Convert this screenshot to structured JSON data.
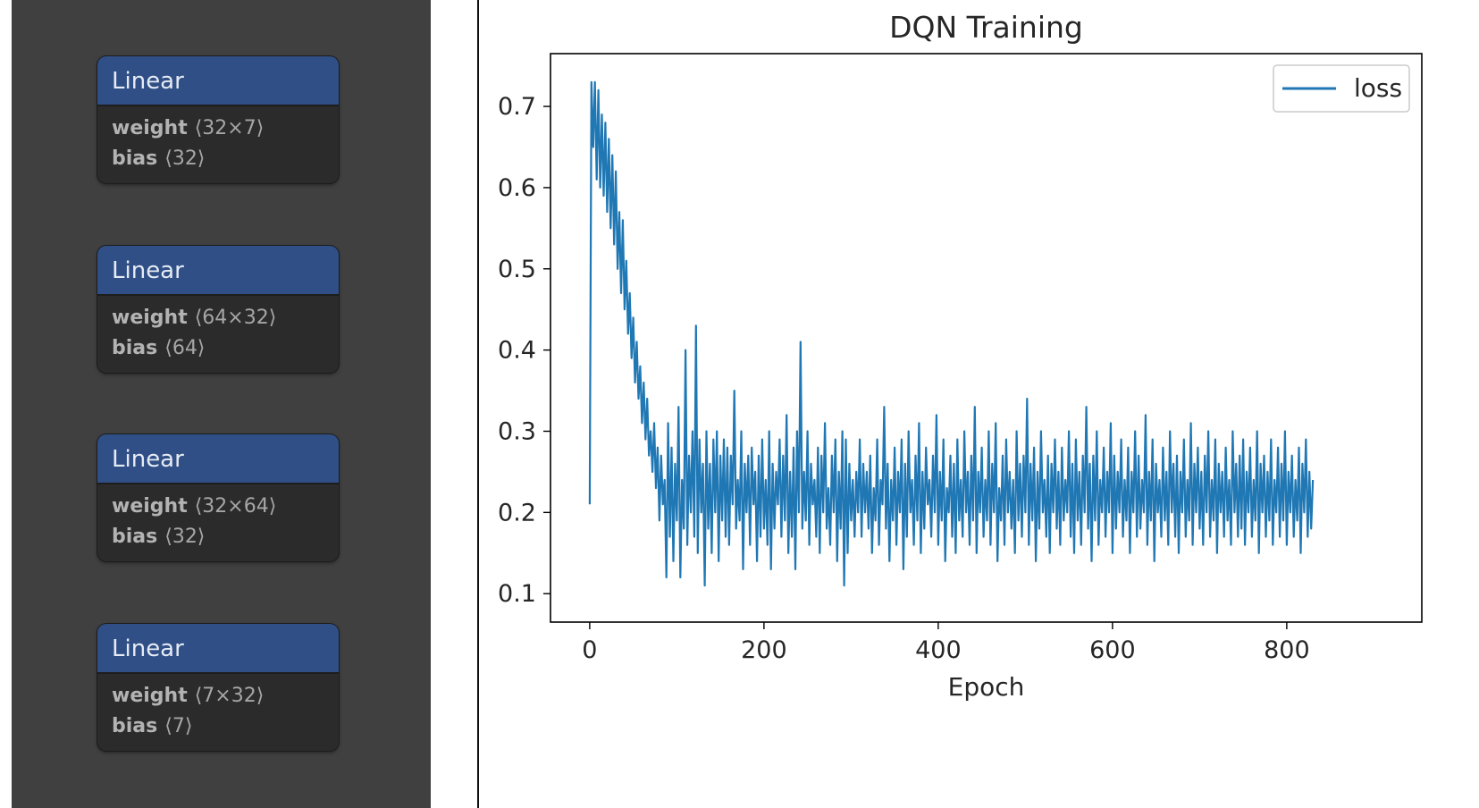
{
  "layers": [
    {
      "title": "Linear",
      "params": [
        {
          "name": "weight",
          "shape": "⟨32×7⟩"
        },
        {
          "name": "bias",
          "shape": "⟨32⟩"
        }
      ]
    },
    {
      "title": "Linear",
      "params": [
        {
          "name": "weight",
          "shape": "⟨64×32⟩"
        },
        {
          "name": "bias",
          "shape": "⟨64⟩"
        }
      ]
    },
    {
      "title": "Linear",
      "params": [
        {
          "name": "weight",
          "shape": "⟨32×64⟩"
        },
        {
          "name": "bias",
          "shape": "⟨32⟩"
        }
      ]
    },
    {
      "title": "Linear",
      "params": [
        {
          "name": "weight",
          "shape": "⟨7×32⟩"
        },
        {
          "name": "bias",
          "shape": "⟨7⟩"
        }
      ]
    }
  ],
  "colors": {
    "panel_bg": "#404040",
    "layer_header": "#2f4f86",
    "layer_body": "#2b2b2b",
    "series": "#1f77b4"
  },
  "chart_data": {
    "type": "line",
    "title": "DQN Training",
    "xlabel": "Epoch",
    "ylabel": "",
    "xlim": [
      -45,
      955
    ],
    "ylim": [
      0.065,
      0.765
    ],
    "xticks": [
      0,
      200,
      400,
      600,
      800
    ],
    "yticks": [
      0.1,
      0.2,
      0.3,
      0.4,
      0.5,
      0.6,
      0.7
    ],
    "grid": false,
    "legend": {
      "position": "top-right"
    },
    "series": [
      {
        "name": "loss",
        "color": "#1f77b4",
        "x_start": 0,
        "x_step": 2,
        "values": [
          0.21,
          0.73,
          0.65,
          0.73,
          0.61,
          0.72,
          0.6,
          0.69,
          0.59,
          0.68,
          0.57,
          0.66,
          0.55,
          0.64,
          0.53,
          0.62,
          0.5,
          0.57,
          0.47,
          0.56,
          0.45,
          0.51,
          0.42,
          0.47,
          0.39,
          0.44,
          0.36,
          0.41,
          0.34,
          0.38,
          0.31,
          0.36,
          0.29,
          0.34,
          0.27,
          0.3,
          0.25,
          0.31,
          0.23,
          0.28,
          0.19,
          0.27,
          0.21,
          0.24,
          0.12,
          0.31,
          0.17,
          0.28,
          0.14,
          0.26,
          0.19,
          0.33,
          0.12,
          0.24,
          0.18,
          0.4,
          0.16,
          0.27,
          0.2,
          0.3,
          0.17,
          0.43,
          0.15,
          0.29,
          0.2,
          0.26,
          0.11,
          0.3,
          0.18,
          0.26,
          0.15,
          0.29,
          0.2,
          0.3,
          0.14,
          0.27,
          0.19,
          0.29,
          0.17,
          0.28,
          0.16,
          0.27,
          0.21,
          0.35,
          0.18,
          0.24,
          0.19,
          0.3,
          0.13,
          0.26,
          0.2,
          0.27,
          0.16,
          0.28,
          0.21,
          0.25,
          0.14,
          0.27,
          0.17,
          0.29,
          0.18,
          0.24,
          0.16,
          0.3,
          0.13,
          0.26,
          0.18,
          0.25,
          0.21,
          0.29,
          0.17,
          0.27,
          0.19,
          0.32,
          0.15,
          0.25,
          0.17,
          0.28,
          0.13,
          0.3,
          0.2,
          0.41,
          0.18,
          0.25,
          0.19,
          0.3,
          0.16,
          0.26,
          0.21,
          0.24,
          0.17,
          0.28,
          0.15,
          0.27,
          0.2,
          0.31,
          0.18,
          0.23,
          0.16,
          0.27,
          0.2,
          0.29,
          0.14,
          0.25,
          0.18,
          0.3,
          0.11,
          0.29,
          0.15,
          0.26,
          0.19,
          0.24,
          0.17,
          0.25,
          0.2,
          0.29,
          0.17,
          0.26,
          0.2,
          0.25,
          0.18,
          0.27,
          0.15,
          0.23,
          0.19,
          0.29,
          0.16,
          0.24,
          0.21,
          0.33,
          0.18,
          0.26,
          0.14,
          0.24,
          0.19,
          0.28,
          0.16,
          0.25,
          0.2,
          0.29,
          0.13,
          0.26,
          0.17,
          0.3,
          0.2,
          0.24,
          0.16,
          0.27,
          0.19,
          0.31,
          0.15,
          0.25,
          0.18,
          0.28,
          0.21,
          0.24,
          0.17,
          0.27,
          0.2,
          0.32,
          0.16,
          0.25,
          0.19,
          0.29,
          0.14,
          0.23,
          0.2,
          0.27,
          0.17,
          0.26,
          0.15,
          0.29,
          0.19,
          0.24,
          0.17,
          0.3,
          0.2,
          0.25,
          0.16,
          0.27,
          0.19,
          0.33,
          0.15,
          0.25,
          0.2,
          0.28,
          0.17,
          0.24,
          0.19,
          0.3,
          0.16,
          0.26,
          0.2,
          0.31,
          0.14,
          0.23,
          0.19,
          0.27,
          0.16,
          0.29,
          0.2,
          0.25,
          0.18,
          0.24,
          0.15,
          0.3,
          0.19,
          0.26,
          0.17,
          0.27,
          0.2,
          0.34,
          0.16,
          0.26,
          0.19,
          0.28,
          0.14,
          0.25,
          0.18,
          0.3,
          0.2,
          0.24,
          0.17,
          0.27,
          0.15,
          0.26,
          0.2,
          0.29,
          0.18,
          0.25,
          0.16,
          0.28,
          0.19,
          0.24,
          0.2,
          0.3,
          0.17,
          0.26,
          0.15,
          0.29,
          0.19,
          0.25,
          0.16,
          0.27,
          0.2,
          0.33,
          0.18,
          0.26,
          0.14,
          0.27,
          0.19,
          0.3,
          0.16,
          0.24,
          0.2,
          0.28,
          0.17,
          0.25,
          0.2,
          0.31,
          0.15,
          0.27,
          0.18,
          0.25,
          0.2,
          0.29,
          0.17,
          0.24,
          0.19,
          0.28,
          0.15,
          0.25,
          0.2,
          0.3,
          0.17,
          0.27,
          0.18,
          0.24,
          0.2,
          0.32,
          0.16,
          0.25,
          0.19,
          0.29,
          0.14,
          0.26,
          0.2,
          0.24,
          0.17,
          0.28,
          0.19,
          0.25,
          0.16,
          0.3,
          0.2,
          0.26,
          0.17,
          0.27,
          0.15,
          0.25,
          0.2,
          0.29,
          0.17,
          0.24,
          0.19,
          0.31,
          0.16,
          0.26,
          0.2,
          0.28,
          0.18,
          0.25,
          0.16,
          0.27,
          0.2,
          0.3,
          0.17,
          0.24,
          0.19,
          0.29,
          0.15,
          0.26,
          0.2,
          0.25,
          0.17,
          0.28,
          0.19,
          0.24,
          0.16,
          0.3,
          0.2,
          0.26,
          0.17,
          0.27,
          0.18,
          0.29,
          0.16,
          0.25,
          0.2,
          0.28,
          0.17,
          0.24,
          0.19,
          0.3,
          0.15,
          0.26,
          0.2,
          0.27,
          0.17,
          0.25,
          0.19,
          0.29,
          0.16,
          0.24,
          0.2,
          0.28,
          0.17,
          0.26,
          0.19,
          0.3,
          0.16,
          0.25,
          0.2,
          0.27,
          0.17,
          0.24,
          0.19,
          0.28,
          0.15,
          0.26,
          0.2,
          0.29,
          0.17,
          0.25,
          0.18,
          0.24
        ]
      }
    ]
  }
}
